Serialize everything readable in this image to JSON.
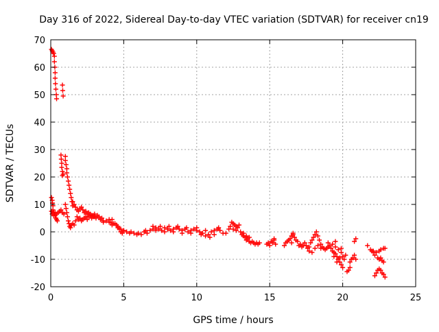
{
  "chart_data": {
    "type": "scatter",
    "title": "Day 316 of 2022, Sidereal Day-to-day VTEC variation (SDTVAR) for receiver cn19",
    "xlabel": "GPS time / hours",
    "ylabel": "SDTVAR / TECUs",
    "xlim": [
      0,
      25
    ],
    "ylim": [
      -20,
      70
    ],
    "xticks": [
      0,
      5,
      10,
      15,
      20,
      25
    ],
    "yticks": [
      -20,
      -10,
      0,
      10,
      20,
      30,
      40,
      50,
      60,
      70
    ],
    "grid": true,
    "marker": "plus",
    "series": [
      {
        "name": "SDTVAR",
        "color": "#ff0000",
        "points": [
          [
            0.05,
            66.5
          ],
          [
            0.1,
            66
          ],
          [
            0.15,
            65.5
          ],
          [
            0.2,
            65
          ],
          [
            0.25,
            64
          ],
          [
            0.25,
            62
          ],
          [
            0.28,
            60
          ],
          [
            0.3,
            58
          ],
          [
            0.3,
            56
          ],
          [
            0.32,
            54
          ],
          [
            0.35,
            52
          ],
          [
            0.38,
            50
          ],
          [
            0.4,
            48.5
          ],
          [
            0.8,
            53.5
          ],
          [
            0.82,
            51.5
          ],
          [
            0.85,
            49.5
          ],
          [
            0.7,
            28
          ],
          [
            0.72,
            26.5
          ],
          [
            0.75,
            25
          ],
          [
            0.75,
            23.5
          ],
          [
            0.8,
            22
          ],
          [
            0.8,
            20.5
          ],
          [
            0.85,
            21
          ],
          [
            1.0,
            27.5
          ],
          [
            1.0,
            26
          ],
          [
            1.05,
            24.5
          ],
          [
            1.1,
            23
          ],
          [
            1.1,
            21.5
          ],
          [
            1.15,
            20
          ],
          [
            1.2,
            18.5
          ],
          [
            1.25,
            17
          ],
          [
            1.3,
            15.5
          ],
          [
            1.35,
            14
          ],
          [
            1.4,
            12.5
          ],
          [
            1.45,
            11
          ],
          [
            1.5,
            9.5
          ],
          [
            0.05,
            12.5
          ],
          [
            0.1,
            11.5
          ],
          [
            0.12,
            10.5
          ],
          [
            0.15,
            9.5
          ],
          [
            0.15,
            8
          ],
          [
            0.2,
            7
          ],
          [
            0.25,
            6.5
          ],
          [
            0.3,
            6
          ],
          [
            0.35,
            5
          ],
          [
            0.4,
            4.5
          ],
          [
            0.45,
            4
          ],
          [
            0.05,
            7.5
          ],
          [
            0.1,
            6.5
          ],
          [
            0.2,
            6
          ],
          [
            0.3,
            7
          ],
          [
            0.4,
            6.5
          ],
          [
            0.5,
            7
          ],
          [
            0.6,
            7.5
          ],
          [
            0.7,
            8
          ],
          [
            0.8,
            7
          ],
          [
            0.9,
            6.5
          ],
          [
            1.0,
            10
          ],
          [
            1.05,
            8.5
          ],
          [
            1.1,
            7
          ],
          [
            1.15,
            5.5
          ],
          [
            1.2,
            4
          ],
          [
            1.25,
            3
          ],
          [
            1.3,
            2
          ],
          [
            1.35,
            1.5
          ],
          [
            1.4,
            2.5
          ],
          [
            1.5,
            3
          ],
          [
            1.6,
            2.5
          ],
          [
            1.7,
            4
          ],
          [
            1.5,
            11
          ],
          [
            1.6,
            10
          ],
          [
            1.7,
            9
          ],
          [
            1.8,
            8
          ],
          [
            1.9,
            7.5
          ],
          [
            2.0,
            8.5
          ],
          [
            2.1,
            9
          ],
          [
            2.2,
            8
          ],
          [
            2.3,
            7
          ],
          [
            2.4,
            7.5
          ],
          [
            2.5,
            6.5
          ],
          [
            1.8,
            5.5
          ],
          [
            1.9,
            4.5
          ],
          [
            2.0,
            5
          ],
          [
            2.1,
            4
          ],
          [
            2.2,
            4.5
          ],
          [
            2.3,
            5
          ],
          [
            2.4,
            5.5
          ],
          [
            2.5,
            4.5
          ],
          [
            2.6,
            5.5
          ],
          [
            2.7,
            6
          ],
          [
            2.8,
            5
          ],
          [
            2.9,
            6
          ],
          [
            3.0,
            5.5
          ],
          [
            3.1,
            5
          ],
          [
            3.2,
            6
          ],
          [
            3.3,
            5.5
          ],
          [
            3.4,
            4.5
          ],
          [
            3.5,
            5
          ],
          [
            3.6,
            4
          ],
          [
            2.6,
            7
          ],
          [
            2.7,
            6.5
          ],
          [
            2.8,
            6
          ],
          [
            2.9,
            5.5
          ],
          [
            3.0,
            6.5
          ],
          [
            3.6,
            3.5
          ],
          [
            3.8,
            4
          ],
          [
            4.0,
            3.5
          ],
          [
            4.2,
            4.5
          ],
          [
            4.4,
            3
          ],
          [
            4.6,
            2
          ],
          [
            4.8,
            1
          ],
          [
            5.0,
            0.5
          ],
          [
            5.2,
            0
          ],
          [
            5.4,
            -0.5
          ],
          [
            4.0,
            4.5
          ],
          [
            4.1,
            3.5
          ],
          [
            4.2,
            2.5
          ],
          [
            4.3,
            3
          ],
          [
            4.5,
            2.5
          ],
          [
            4.6,
            1.5
          ],
          [
            4.7,
            1
          ],
          [
            4.8,
            0
          ],
          [
            4.9,
            -0.5
          ],
          [
            5.0,
            0.5
          ],
          [
            5.5,
            0
          ],
          [
            5.7,
            -0.5
          ],
          [
            5.9,
            -1
          ],
          [
            6.0,
            -0.5
          ],
          [
            6.2,
            -1
          ],
          [
            6.4,
            0
          ],
          [
            6.5,
            0.5
          ],
          [
            6.6,
            -0.5
          ],
          [
            6.8,
            0.5
          ],
          [
            7.0,
            1
          ],
          [
            7.2,
            1.5
          ],
          [
            7.4,
            1
          ],
          [
            7.6,
            0.5
          ],
          [
            7.8,
            1.5
          ],
          [
            8.0,
            1
          ],
          [
            8.2,
            0.5
          ],
          [
            8.4,
            1
          ],
          [
            8.6,
            1.5
          ],
          [
            8.8,
            1
          ],
          [
            9.0,
            0.5
          ],
          [
            9.2,
            1
          ],
          [
            9.4,
            0
          ],
          [
            9.6,
            0.5
          ],
          [
            9.8,
            1
          ],
          [
            10.0,
            0.5
          ],
          [
            10.2,
            0
          ],
          [
            10.4,
            -0.5
          ],
          [
            10.6,
            -1.5
          ],
          [
            10.8,
            -1
          ],
          [
            11.0,
            0
          ],
          [
            11.2,
            0.5
          ],
          [
            11.4,
            1
          ],
          [
            11.6,
            0.5
          ],
          [
            11.8,
            -0.5
          ],
          [
            12.0,
            -0.5
          ],
          [
            7.0,
            2
          ],
          [
            7.2,
            0.5
          ],
          [
            7.5,
            2
          ],
          [
            7.8,
            0
          ],
          [
            8.1,
            2
          ],
          [
            8.4,
            0
          ],
          [
            8.7,
            2
          ],
          [
            9.0,
            -0.5
          ],
          [
            9.3,
            1.5
          ],
          [
            9.6,
            -0.5
          ],
          [
            10.0,
            1.5
          ],
          [
            10.3,
            -1
          ],
          [
            10.6,
            0.5
          ],
          [
            10.9,
            -2
          ],
          [
            11.2,
            -1
          ],
          [
            11.5,
            1.5
          ],
          [
            12.2,
            1
          ],
          [
            12.3,
            2
          ],
          [
            12.4,
            3.5
          ],
          [
            12.5,
            3
          ],
          [
            12.6,
            2.5
          ],
          [
            12.7,
            2
          ],
          [
            12.8,
            1.5
          ],
          [
            12.9,
            2.5
          ],
          [
            12.5,
            1
          ],
          [
            12.7,
            0.5
          ],
          [
            13.0,
            0
          ],
          [
            13.1,
            -1
          ],
          [
            13.2,
            -1.5
          ],
          [
            13.3,
            -2
          ],
          [
            13.4,
            -3
          ],
          [
            13.5,
            -2.5
          ],
          [
            13.6,
            -3.5
          ],
          [
            13.7,
            -4
          ],
          [
            13.8,
            -3.5
          ],
          [
            13.9,
            -4
          ],
          [
            14.0,
            -4.5
          ],
          [
            14.1,
            -4
          ],
          [
            14.2,
            -4.5
          ],
          [
            14.3,
            -4
          ],
          [
            13.2,
            -0.5
          ],
          [
            13.4,
            -1.5
          ],
          [
            13.6,
            -2
          ],
          [
            14.8,
            -4.5
          ],
          [
            14.9,
            -4
          ],
          [
            15.0,
            -5
          ],
          [
            15.1,
            -3.5
          ],
          [
            15.2,
            -4
          ],
          [
            15.3,
            -3
          ],
          [
            15.4,
            -4.5
          ],
          [
            15.3,
            -2.5
          ],
          [
            16.0,
            -5
          ],
          [
            16.1,
            -4
          ],
          [
            16.2,
            -3.5
          ],
          [
            16.3,
            -3
          ],
          [
            16.4,
            -2.5
          ],
          [
            16.5,
            -1.5
          ],
          [
            16.6,
            -1
          ],
          [
            16.7,
            -2
          ],
          [
            16.8,
            -3
          ],
          [
            16.9,
            -3.5
          ],
          [
            16.6,
            -0.5
          ],
          [
            16.5,
            -4
          ],
          [
            17.0,
            -5
          ],
          [
            17.1,
            -4.5
          ],
          [
            17.2,
            -5.5
          ],
          [
            17.3,
            -5
          ],
          [
            17.4,
            -4
          ],
          [
            17.5,
            -5
          ],
          [
            17.6,
            -6
          ],
          [
            17.7,
            -5.5
          ],
          [
            17.8,
            -4
          ],
          [
            17.9,
            -3
          ],
          [
            18.0,
            -2
          ],
          [
            18.1,
            -1
          ],
          [
            18.2,
            0
          ],
          [
            18.3,
            -1.5
          ],
          [
            18.4,
            -3
          ],
          [
            18.5,
            -4.5
          ],
          [
            18.6,
            -5.5
          ],
          [
            18.7,
            -6
          ],
          [
            18.8,
            -6.5
          ],
          [
            18.9,
            -6
          ],
          [
            19.0,
            -5.5
          ],
          [
            17.7,
            -7
          ],
          [
            17.9,
            -7.5
          ],
          [
            18.1,
            -6
          ],
          [
            18.3,
            -5
          ],
          [
            18.5,
            -6
          ],
          [
            19.0,
            -4
          ],
          [
            19.1,
            -5
          ],
          [
            19.2,
            -6
          ],
          [
            19.3,
            -7
          ],
          [
            19.4,
            -7.5
          ],
          [
            19.5,
            -8
          ],
          [
            19.6,
            -9
          ],
          [
            19.7,
            -10
          ],
          [
            19.8,
            -11
          ],
          [
            19.9,
            -12
          ],
          [
            20.0,
            -13
          ],
          [
            19.3,
            -4.5
          ],
          [
            19.5,
            -5.5
          ],
          [
            19.7,
            -6.5
          ],
          [
            19.9,
            -7.5
          ],
          [
            19.4,
            -9
          ],
          [
            19.6,
            -11
          ],
          [
            19.8,
            -9.5
          ],
          [
            19.9,
            -6
          ],
          [
            19.5,
            -3.5
          ],
          [
            20.0,
            -9
          ],
          [
            20.1,
            -10
          ],
          [
            20.2,
            -8.5
          ],
          [
            20.3,
            -14.5
          ],
          [
            20.4,
            -14
          ],
          [
            20.5,
            -13
          ],
          [
            20.6,
            -10
          ],
          [
            20.7,
            -9.5
          ],
          [
            20.8,
            -8.5
          ],
          [
            20.9,
            -10
          ],
          [
            20.5,
            -11
          ],
          [
            20.8,
            -3.5
          ],
          [
            20.9,
            -2.5
          ],
          [
            21.7,
            -5
          ],
          [
            21.9,
            -6.5
          ],
          [
            22.0,
            -7
          ],
          [
            22.1,
            -7.5
          ],
          [
            22.2,
            -8.5
          ],
          [
            22.4,
            -9.5
          ],
          [
            22.5,
            -10
          ],
          [
            22.6,
            -9.5
          ],
          [
            22.7,
            -10.5
          ],
          [
            22.8,
            -11
          ],
          [
            22.1,
            -7
          ],
          [
            22.3,
            -7.5
          ],
          [
            22.5,
            -7
          ],
          [
            22.6,
            -6.5
          ],
          [
            22.8,
            -6
          ],
          [
            22.9,
            -6
          ],
          [
            22.2,
            -16
          ],
          [
            22.3,
            -15
          ],
          [
            22.4,
            -14
          ],
          [
            22.5,
            -13.5
          ],
          [
            22.6,
            -14
          ],
          [
            22.7,
            -15
          ],
          [
            22.8,
            -15.5
          ],
          [
            22.9,
            -16.5
          ]
        ]
      }
    ]
  }
}
